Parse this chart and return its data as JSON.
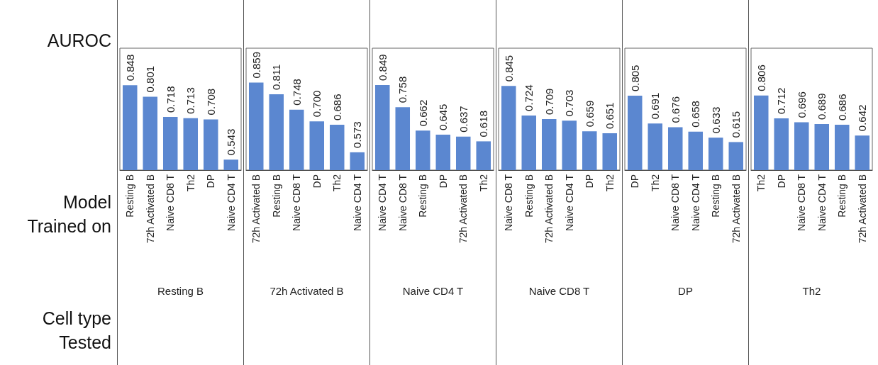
{
  "chart_data": [
    {
      "type": "bar",
      "title": "Resting B",
      "ylabel": "AUROC",
      "xlabel": "Model Trained on",
      "annotations": [
        "Cell type Tested"
      ],
      "categories": [
        "Resting B",
        "72h Activated B",
        "Naive CD8 T",
        "Th2",
        "DP",
        "Naive CD4 T"
      ],
      "values": [
        0.848,
        0.801,
        0.718,
        0.713,
        0.708,
        0.543
      ],
      "value_labels": [
        "0.848",
        "0.801",
        "0.718",
        "0.713",
        "0.708",
        "0.543"
      ],
      "color": "#5b87d0",
      "ylim": [
        0.5,
        1
      ],
      "tick_labels": "x",
      "grid": false
    },
    {
      "type": "bar",
      "title": "72h Activated B",
      "categories": [
        "72h Activated B",
        "Resting B",
        "Naive CD8 T",
        "DP",
        "Th2",
        "Naive CD4 T"
      ],
      "values": [
        0.859,
        0.811,
        0.748,
        0.7,
        0.686,
        0.573
      ],
      "value_labels": [
        "0.859",
        "0.811",
        "0.748",
        "0.700",
        "0.686",
        "0.573"
      ],
      "color": "#5b87d0",
      "ylim": [
        0.5,
        1
      ],
      "tick_labels": "x",
      "grid": false
    },
    {
      "type": "bar",
      "title": "Naive CD4 T",
      "categories": [
        "Naive CD4 T",
        "Naive CD8 T",
        "Resting B",
        "DP",
        "72h Activated B",
        "Th2"
      ],
      "values": [
        0.849,
        0.758,
        0.662,
        0.645,
        0.637,
        0.618
      ],
      "value_labels": [
        "0.849",
        "0.758",
        "0.662",
        "0.645",
        "0.637",
        "0.618"
      ],
      "color": "#5b87d0",
      "ylim": [
        0.5,
        1
      ],
      "tick_labels": "x",
      "grid": false
    },
    {
      "type": "bar",
      "title": "Naive CD8 T",
      "categories": [
        "Naive CD8 T",
        "Resting B",
        "72h Activated B",
        "Naive CD4 T",
        "DP",
        "Th2"
      ],
      "values": [
        0.845,
        0.724,
        0.709,
        0.703,
        0.659,
        0.651
      ],
      "value_labels": [
        "0.845",
        "0.724",
        "0.709",
        "0.703",
        "0.659",
        "0.651"
      ],
      "color": "#5b87d0",
      "ylim": [
        0.5,
        1
      ],
      "tick_labels": "x",
      "grid": false
    },
    {
      "type": "bar",
      "title": "DP",
      "categories": [
        "DP",
        "Th2",
        "Naive CD8 T",
        "Naive CD4 T",
        "Resting B",
        "72h Activated B"
      ],
      "values": [
        0.805,
        0.691,
        0.676,
        0.658,
        0.633,
        0.615
      ],
      "value_labels": [
        "0.805",
        "0.691",
        "0.676",
        "0.658",
        "0.633",
        "0.615"
      ],
      "color": "#5b87d0",
      "ylim": [
        0.5,
        1
      ],
      "tick_labels": "x",
      "grid": false
    },
    {
      "type": "bar",
      "title": "Th2",
      "categories": [
        "Th2",
        "DP",
        "Naive CD8 T",
        "Naive CD4 T",
        "Resting B",
        "72h Activated B"
      ],
      "values": [
        0.806,
        0.712,
        0.696,
        0.689,
        0.686,
        0.642
      ],
      "value_labels": [
        "0.806",
        "0.712",
        "0.696",
        "0.689",
        "0.686",
        "0.642"
      ],
      "color": "#5b87d0",
      "ylim": [
        0.5,
        1
      ],
      "tick_labels": "x",
      "grid": false
    }
  ]
}
